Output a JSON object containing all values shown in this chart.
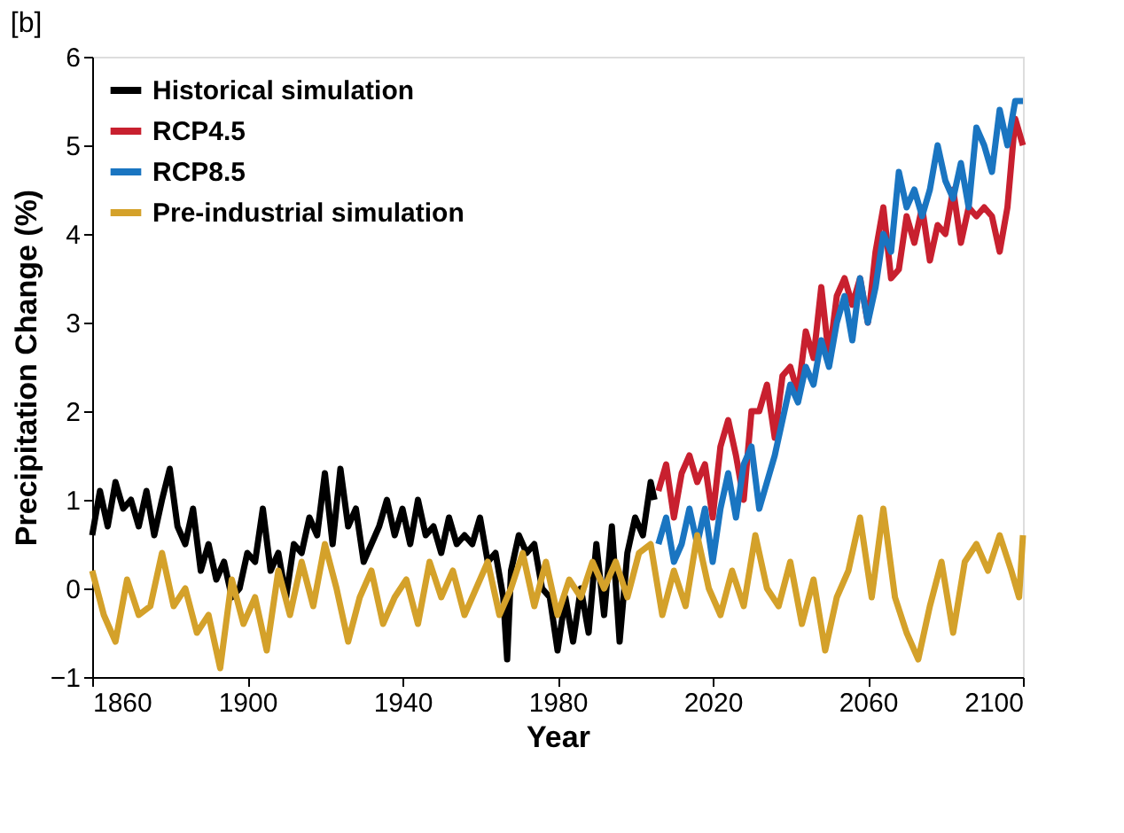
{
  "chart_data": {
    "type": "line",
    "title": "[b]",
    "xlabel": "Year",
    "ylabel": "Precipitation Change (%)",
    "xlim": [
      1860,
      2100
    ],
    "xticks": [
      1860,
      1900,
      1940,
      1980,
      2020,
      2060,
      2100
    ],
    "ylim": [
      -1,
      6
    ],
    "yticks": [
      -1,
      0,
      1,
      2,
      3,
      4,
      5,
      6
    ],
    "grid": false,
    "legend": "top left",
    "marker": "none",
    "line_style": "solid",
    "series": [
      {
        "name": "Historical simulation",
        "color": "#000000",
        "x": [
          1860,
          1862,
          1864,
          1866,
          1868,
          1870,
          1872,
          1874,
          1876,
          1878,
          1880,
          1882,
          1884,
          1886,
          1888,
          1890,
          1892,
          1894,
          1896,
          1898,
          1900,
          1902,
          1904,
          1906,
          1908,
          1910,
          1912,
          1914,
          1916,
          1918,
          1920,
          1922,
          1924,
          1926,
          1928,
          1930,
          1932,
          1934,
          1936,
          1938,
          1940,
          1942,
          1944,
          1946,
          1948,
          1950,
          1952,
          1954,
          1956,
          1958,
          1960,
          1962,
          1964,
          1966,
          1967,
          1968,
          1970,
          1972,
          1974,
          1976,
          1978,
          1980,
          1982,
          1984,
          1986,
          1988,
          1990,
          1992,
          1994,
          1996,
          1998,
          2000,
          2002,
          2004,
          2005
        ],
        "values": [
          0.6,
          1.1,
          0.7,
          1.2,
          0.9,
          1.0,
          0.7,
          1.1,
          0.6,
          1.0,
          1.35,
          0.7,
          0.5,
          0.9,
          0.2,
          0.5,
          0.1,
          0.3,
          -0.1,
          0.0,
          0.4,
          0.3,
          0.9,
          0.2,
          0.4,
          -0.1,
          0.5,
          0.4,
          0.8,
          0.6,
          1.3,
          0.5,
          1.35,
          0.7,
          0.9,
          0.3,
          0.5,
          0.7,
          1.0,
          0.6,
          0.9,
          0.5,
          1.0,
          0.6,
          0.7,
          0.4,
          0.8,
          0.5,
          0.6,
          0.5,
          0.8,
          0.3,
          0.4,
          -0.1,
          -0.8,
          0.2,
          0.6,
          0.4,
          0.5,
          0.0,
          -0.1,
          -0.7,
          -0.1,
          -0.6,
          0.0,
          -0.5,
          0.5,
          -0.3,
          0.7,
          -0.6,
          0.4,
          0.8,
          0.6,
          1.2,
          1.0
        ]
      },
      {
        "name": "RCP4.5",
        "color": "#c8202f",
        "x": [
          2006,
          2008,
          2010,
          2012,
          2014,
          2016,
          2018,
          2020,
          2022,
          2024,
          2026,
          2028,
          2030,
          2032,
          2034,
          2036,
          2038,
          2040,
          2042,
          2044,
          2046,
          2048,
          2050,
          2052,
          2054,
          2056,
          2058,
          2060,
          2062,
          2064,
          2066,
          2068,
          2070,
          2072,
          2074,
          2076,
          2078,
          2080,
          2082,
          2084,
          2086,
          2088,
          2090,
          2092,
          2094,
          2096,
          2098,
          2100
        ],
        "values": [
          1.1,
          1.4,
          0.8,
          1.3,
          1.5,
          1.2,
          1.4,
          0.8,
          1.6,
          1.9,
          1.5,
          1.0,
          2.0,
          2.0,
          2.3,
          1.7,
          2.4,
          2.5,
          2.2,
          2.9,
          2.6,
          3.4,
          2.6,
          3.3,
          3.5,
          3.2,
          3.5,
          3.0,
          3.8,
          4.3,
          3.5,
          3.6,
          4.2,
          3.9,
          4.3,
          3.7,
          4.1,
          4.0,
          4.5,
          3.9,
          4.3,
          4.2,
          4.3,
          4.2,
          3.8,
          4.3,
          5.3,
          5.0
        ]
      },
      {
        "name": "RCP8.5",
        "color": "#1a75c1",
        "x": [
          2006,
          2008,
          2010,
          2012,
          2014,
          2016,
          2018,
          2020,
          2022,
          2024,
          2026,
          2028,
          2030,
          2032,
          2034,
          2036,
          2038,
          2040,
          2042,
          2044,
          2046,
          2048,
          2050,
          2052,
          2054,
          2056,
          2058,
          2060,
          2062,
          2064,
          2066,
          2068,
          2070,
          2072,
          2074,
          2076,
          2078,
          2080,
          2082,
          2084,
          2086,
          2088,
          2090,
          2092,
          2094,
          2096,
          2098,
          2100
        ],
        "values": [
          0.5,
          0.8,
          0.3,
          0.5,
          0.9,
          0.5,
          0.9,
          0.3,
          0.9,
          1.3,
          0.8,
          1.4,
          1.6,
          0.9,
          1.2,
          1.5,
          1.9,
          2.3,
          2.1,
          2.5,
          2.3,
          2.8,
          2.5,
          3.0,
          3.3,
          2.8,
          3.5,
          3.0,
          3.4,
          4.0,
          3.8,
          4.7,
          4.3,
          4.5,
          4.2,
          4.5,
          5.0,
          4.6,
          4.4,
          4.8,
          4.3,
          5.2,
          5.0,
          4.7,
          5.4,
          5.0,
          5.5,
          5.5
        ]
      },
      {
        "name": "Pre-industrial simulation",
        "color": "#d4a12a",
        "x": [
          1860,
          1863,
          1866,
          1869,
          1872,
          1875,
          1878,
          1881,
          1884,
          1887,
          1890,
          1893,
          1896,
          1899,
          1902,
          1905,
          1908,
          1911,
          1914,
          1917,
          1920,
          1923,
          1926,
          1929,
          1932,
          1935,
          1938,
          1941,
          1944,
          1947,
          1950,
          1953,
          1956,
          1959,
          1962,
          1965,
          1968,
          1971,
          1974,
          1977,
          1980,
          1983,
          1986,
          1989,
          1992,
          1995,
          1998,
          2001,
          2004,
          2007,
          2010,
          2013,
          2016,
          2019,
          2022,
          2025,
          2028,
          2031,
          2034,
          2037,
          2040,
          2043,
          2046,
          2049,
          2052,
          2055,
          2058,
          2061,
          2064,
          2067,
          2070,
          2073,
          2076,
          2079,
          2082,
          2085,
          2088,
          2091,
          2094,
          2097,
          2099,
          2100
        ],
        "values": [
          0.2,
          -0.3,
          -0.6,
          0.1,
          -0.3,
          -0.2,
          0.4,
          -0.2,
          0.0,
          -0.5,
          -0.3,
          -0.9,
          0.1,
          -0.4,
          -0.1,
          -0.7,
          0.2,
          -0.3,
          0.3,
          -0.2,
          0.5,
          0.0,
          -0.6,
          -0.1,
          0.2,
          -0.4,
          -0.1,
          0.1,
          -0.4,
          0.3,
          -0.1,
          0.2,
          -0.3,
          0.0,
          0.3,
          -0.3,
          0.0,
          0.4,
          -0.2,
          0.3,
          -0.3,
          0.1,
          -0.1,
          0.3,
          0.0,
          0.3,
          -0.1,
          0.4,
          0.5,
          -0.3,
          0.2,
          -0.2,
          0.6,
          0.0,
          -0.3,
          0.2,
          -0.2,
          0.6,
          0.0,
          -0.2,
          0.3,
          -0.4,
          0.1,
          -0.7,
          -0.1,
          0.2,
          0.8,
          -0.1,
          0.9,
          -0.1,
          -0.5,
          -0.8,
          -0.2,
          0.3,
          -0.5,
          0.3,
          0.5,
          0.2,
          0.6,
          0.2,
          -0.1,
          0.6
        ]
      }
    ]
  }
}
